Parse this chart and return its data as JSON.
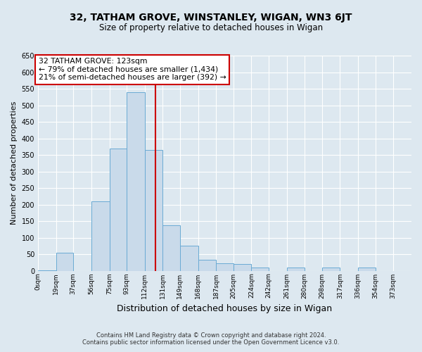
{
  "title": "32, TATHAM GROVE, WINSTANLEY, WIGAN, WN3 6JT",
  "subtitle": "Size of property relative to detached houses in Wigan",
  "xlabel": "Distribution of detached houses by size in Wigan",
  "ylabel": "Number of detached properties",
  "footer_line1": "Contains HM Land Registry data © Crown copyright and database right 2024.",
  "footer_line2": "Contains public sector information licensed under the Open Government Licence v3.0.",
  "bin_labels": [
    "0sqm",
    "19sqm",
    "37sqm",
    "56sqm",
    "75sqm",
    "93sqm",
    "112sqm",
    "131sqm",
    "149sqm",
    "168sqm",
    "187sqm",
    "205sqm",
    "224sqm",
    "242sqm",
    "261sqm",
    "280sqm",
    "298sqm",
    "317sqm",
    "336sqm",
    "354sqm",
    "373sqm"
  ],
  "bin_edges": [
    0,
    19,
    37,
    56,
    75,
    93,
    112,
    131,
    149,
    168,
    187,
    205,
    224,
    242,
    261,
    280,
    298,
    317,
    336,
    354,
    373,
    392
  ],
  "bar_values": [
    2,
    55,
    0,
    210,
    370,
    540,
    365,
    137,
    75,
    32,
    22,
    20,
    10,
    0,
    10,
    0,
    10,
    0,
    10,
    0,
    0
  ],
  "bar_color": "#c9daea",
  "bar_edge_color": "#6aaad4",
  "vline_x": 123,
  "vline_color": "#cc0000",
  "annotation_line1": "32 TATHAM GROVE: 123sqm",
  "annotation_line2": "← 79% of detached houses are smaller (1,434)",
  "annotation_line3": "21% of semi-detached houses are larger (392) →",
  "annotation_box_facecolor": "#ffffff",
  "annotation_box_edgecolor": "#cc0000",
  "ylim": [
    0,
    650
  ],
  "yticks": [
    0,
    50,
    100,
    150,
    200,
    250,
    300,
    350,
    400,
    450,
    500,
    550,
    600,
    650
  ],
  "background_color": "#dde8f0",
  "grid_color": "#ffffff",
  "title_fontsize": 10,
  "subtitle_fontsize": 8.5,
  "ylabel_fontsize": 8,
  "xlabel_fontsize": 9,
  "tick_fontsize": 7,
  "xtick_fontsize": 6.5,
  "footer_fontsize": 6,
  "annotation_fontsize": 7.8
}
